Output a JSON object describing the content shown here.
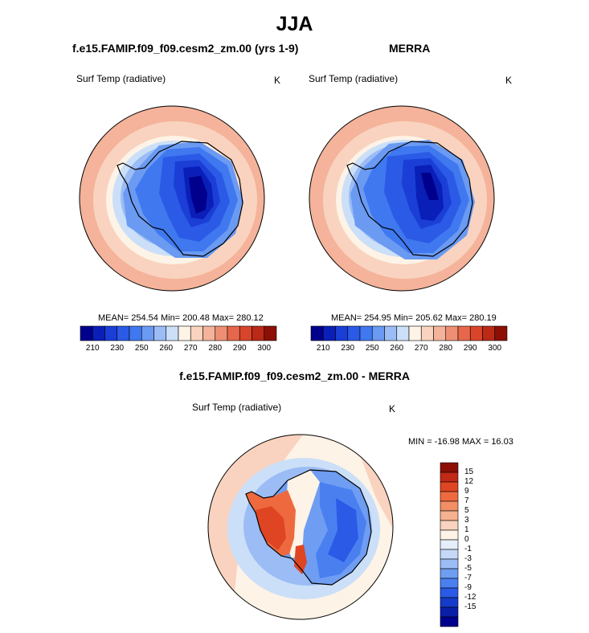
{
  "title": "JJA",
  "panels": [
    {
      "id": "model",
      "title": "f.e15.FAMIP.f09_f09.cesm2_zm.00 (yrs 1-9)",
      "variable": "Surf Temp (radiative)",
      "units": "K",
      "stats": "MEAN= 254.54  Min= 200.48  Max= 280.12"
    },
    {
      "id": "obs",
      "title": "MERRA",
      "variable": "Surf Temp (radiative)",
      "units": "K",
      "stats": "MEAN= 254.95  Min= 205.62  Max= 280.19"
    },
    {
      "id": "diff",
      "title": "f.e15.FAMIP.f09_f09.cesm2_zm.00 - MERRA",
      "variable": "Surf Temp (radiative)",
      "units": "K",
      "stats": "MIN = -16.98 MAX =  16.03"
    }
  ],
  "colorbar_abs": {
    "colors": [
      "#00008c",
      "#0a1fb8",
      "#1a3ed6",
      "#2a5ae6",
      "#3f78ef",
      "#6a9af2",
      "#9bbcf5",
      "#cbdff8",
      "#fdf3e6",
      "#f9d3bf",
      "#f4b39a",
      "#ee8f73",
      "#e6674b",
      "#d9452b",
      "#bb2a17",
      "#8c0f06"
    ],
    "labels": [
      "210",
      "230",
      "250",
      "260",
      "270",
      "280",
      "290",
      "300"
    ]
  },
  "colorbar_diff": {
    "colors": [
      "#8c0f06",
      "#c02a16",
      "#df4523",
      "#ee6a3e",
      "#f28d64",
      "#f6b190",
      "#f9d3bf",
      "#fdf3e6",
      "#e6eefb",
      "#c6d8f8",
      "#9bbcf5",
      "#6e9df2",
      "#4a7ff0",
      "#2a5ae6",
      "#163bc8",
      "#0a1fa8",
      "#00008c"
    ],
    "labels": [
      "15",
      "12",
      "9",
      "7",
      "5",
      "3",
      "1",
      "0",
      "-1",
      "-3",
      "-5",
      "-7",
      "-9",
      "-12",
      "-15"
    ]
  }
}
